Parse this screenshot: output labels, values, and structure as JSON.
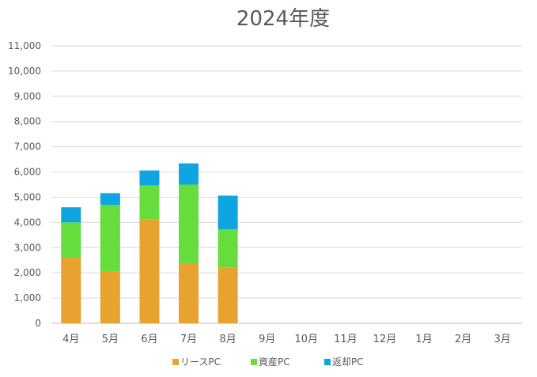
{
  "chart_data": {
    "type": "bar",
    "stacked": true,
    "title": "2024年度",
    "xlabel": "",
    "ylabel": "",
    "categories": [
      "4月",
      "5月",
      "6月",
      "7月",
      "8月",
      "9月",
      "10月",
      "11月",
      "12月",
      "1月",
      "2月",
      "3月"
    ],
    "ylim": [
      0,
      11000
    ],
    "yticks": [
      0,
      1000,
      2000,
      3000,
      4000,
      5000,
      6000,
      7000,
      8000,
      9000,
      10000,
      11000
    ],
    "ytick_labels": [
      "0",
      "1,000",
      "2,000",
      "3,000",
      "4,000",
      "5,000",
      "6,000",
      "7,000",
      "8,000",
      "9,000",
      "10,000",
      "11,000"
    ],
    "grid": true,
    "legend_position": "bottom",
    "series": [
      {
        "name": "リースPC",
        "color": "#E8A22F",
        "values": [
          2600,
          2050,
          4130,
          2380,
          2220,
          null,
          null,
          null,
          null,
          null,
          null,
          null
        ]
      },
      {
        "name": "資産PC",
        "color": "#66DD3C",
        "values": [
          1400,
          2640,
          1340,
          3120,
          1510,
          null,
          null,
          null,
          null,
          null,
          null,
          null
        ]
      },
      {
        "name": "返却PC",
        "color": "#0FA5E0",
        "values": [
          600,
          470,
          590,
          840,
          1330,
          null,
          null,
          null,
          null,
          null,
          null,
          null
        ]
      }
    ]
  }
}
